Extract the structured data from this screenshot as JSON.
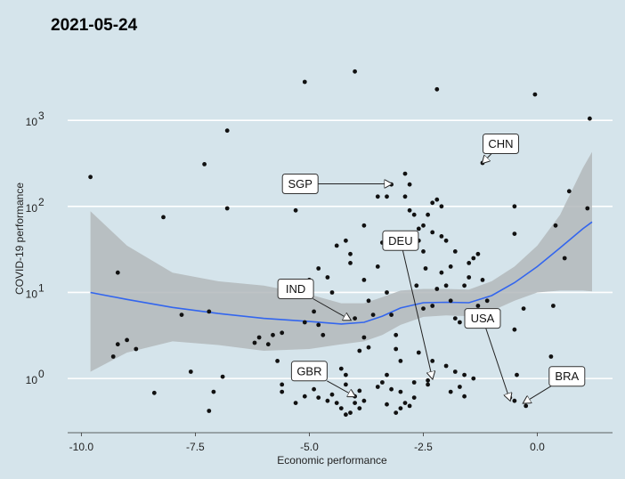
{
  "chart_data": {
    "type": "scatter",
    "title": "2021-05-24",
    "xlabel": "Economic performance",
    "ylabel": "COVID-19 performance",
    "xlim": [
      -10.3,
      1.65
    ],
    "ylim_log10": [
      -0.63,
      3.83
    ],
    "y_scale": "log10",
    "x_ticks": [
      -10.0,
      -7.5,
      -5.0,
      -2.5,
      0.0
    ],
    "x_tick_labels": [
      "-10.0",
      "-7.5",
      "-5.0",
      "-2.5",
      "0.0"
    ],
    "y_ticks": [
      1,
      10,
      100,
      1000
    ],
    "y_tick_labels": [
      {
        "base": "10",
        "exp": "0"
      },
      {
        "base": "10",
        "exp": "1"
      },
      {
        "base": "10",
        "exp": "2"
      },
      {
        "base": "10",
        "exp": "3"
      }
    ],
    "grid": "horizontal",
    "colors": {
      "background": "#d5e4eb",
      "grid": "#ffffff",
      "points": "#111111",
      "smooth_line": "#3366ee",
      "confidence_band": "#b3b8bb"
    },
    "points": [
      [
        -9.8,
        220
      ],
      [
        -9.2,
        17
      ],
      [
        -8.2,
        75
      ],
      [
        -7.3,
        310
      ],
      [
        -6.8,
        760
      ],
      [
        -6.8,
        95
      ],
      [
        -6.9,
        1.05
      ],
      [
        -9.3,
        1.8
      ],
      [
        -9.2,
        2.5
      ],
      [
        -9.0,
        2.8
      ],
      [
        -8.8,
        2.2
      ],
      [
        -8.4,
        0.68
      ],
      [
        -7.6,
        1.2
      ],
      [
        -7.2,
        6.0
      ],
      [
        -7.1,
        0.7
      ],
      [
        -7.2,
        0.42
      ],
      [
        -7.8,
        5.5
      ],
      [
        -6.2,
        2.6
      ],
      [
        -6.1,
        3.0
      ],
      [
        -5.9,
        2.5
      ],
      [
        -5.8,
        3.2
      ],
      [
        -5.7,
        1.6
      ],
      [
        -5.6,
        3.4
      ],
      [
        -5.6,
        0.85
      ],
      [
        -5.6,
        0.7
      ],
      [
        -5.3,
        0.52
      ],
      [
        -5.1,
        0.62
      ],
      [
        -5.0,
        14
      ],
      [
        -4.9,
        6
      ],
      [
        -4.8,
        4.2
      ],
      [
        -4.7,
        3.2
      ],
      [
        -5.3,
        90
      ],
      [
        -5.1,
        2800
      ],
      [
        -4.0,
        3700
      ],
      [
        -4.0,
        5.0
      ],
      [
        -4.4,
        35
      ],
      [
        -4.2,
        40
      ],
      [
        -4.1,
        28
      ],
      [
        -4.1,
        22
      ],
      [
        -4.5,
        10
      ],
      [
        -4.6,
        15
      ],
      [
        -4.8,
        19
      ],
      [
        -5.0,
        11
      ],
      [
        -5.1,
        4.5
      ],
      [
        -4.9,
        0.75
      ],
      [
        -4.8,
        0.6
      ],
      [
        -4.6,
        0.55
      ],
      [
        -4.5,
        0.65
      ],
      [
        -4.4,
        0.52
      ],
      [
        -4.3,
        0.45
      ],
      [
        -4.2,
        0.38
      ],
      [
        -4.1,
        0.4
      ],
      [
        -4.0,
        0.52
      ],
      [
        -3.9,
        0.45
      ],
      [
        -4.2,
        1.1
      ],
      [
        -4.3,
        1.3
      ],
      [
        -4.2,
        0.85
      ],
      [
        -4.0,
        0.62
      ],
      [
        -3.9,
        0.72
      ],
      [
        -3.8,
        0.55
      ],
      [
        -3.8,
        3.0
      ],
      [
        -3.9,
        2.1
      ],
      [
        -3.7,
        2.3
      ],
      [
        -3.6,
        5.5
      ],
      [
        -3.7,
        8
      ],
      [
        -3.8,
        14
      ],
      [
        -3.8,
        60
      ],
      [
        -3.4,
        38
      ],
      [
        -3.5,
        130
      ],
      [
        -3.3,
        130
      ],
      [
        -3.2,
        180
      ],
      [
        -3.3,
        10
      ],
      [
        -3.2,
        5.5
      ],
      [
        -3.1,
        3.2
      ],
      [
        -3.1,
        2.2
      ],
      [
        -3.0,
        1.6
      ],
      [
        -3.3,
        1.1
      ],
      [
        -3.4,
        0.9
      ],
      [
        -3.5,
        0.8
      ],
      [
        -3.2,
        0.75
      ],
      [
        -3.0,
        0.7
      ],
      [
        -2.9,
        0.52
      ],
      [
        -2.8,
        0.48
      ],
      [
        -3.0,
        0.45
      ],
      [
        -3.1,
        0.4
      ],
      [
        -3.3,
        0.5
      ],
      [
        -2.7,
        0.9
      ],
      [
        -2.7,
        0.6
      ],
      [
        -2.9,
        130
      ],
      [
        -2.8,
        180
      ],
      [
        -2.8,
        90
      ],
      [
        -2.7,
        80
      ],
      [
        -2.6,
        55
      ],
      [
        -2.6,
        40
      ],
      [
        -2.5,
        30
      ],
      [
        -2.5,
        60
      ],
      [
        -2.4,
        80
      ],
      [
        -2.3,
        110
      ],
      [
        -2.2,
        120
      ],
      [
        -2.1,
        100
      ],
      [
        -2.9,
        240
      ],
      [
        -2.2,
        2300
      ],
      [
        -2.3,
        50
      ],
      [
        -2.1,
        45
      ],
      [
        -2.0,
        40
      ],
      [
        -1.8,
        30
      ],
      [
        -2.1,
        17
      ],
      [
        -1.9,
        20
      ],
      [
        -2.0,
        12
      ],
      [
        -2.2,
        11
      ],
      [
        -2.5,
        6.5
      ],
      [
        -2.3,
        7
      ],
      [
        -1.9,
        8
      ],
      [
        -1.8,
        5
      ],
      [
        -1.7,
        4.5
      ],
      [
        -1.6,
        12
      ],
      [
        -1.5,
        22
      ],
      [
        -1.4,
        25
      ],
      [
        -1.3,
        28
      ],
      [
        -1.5,
        15
      ],
      [
        -1.2,
        14
      ],
      [
        -1.3,
        7
      ],
      [
        -1.1,
        8
      ],
      [
        -2.6,
        2.0
      ],
      [
        -2.3,
        1.6
      ],
      [
        -2.0,
        1.4
      ],
      [
        -1.8,
        1.2
      ],
      [
        -1.6,
        1.1
      ],
      [
        -1.4,
        1.0
      ],
      [
        -1.7,
        0.8
      ],
      [
        -1.9,
        0.7
      ],
      [
        -1.6,
        0.62
      ],
      [
        -2.4,
        0.95
      ],
      [
        -2.4,
        0.85
      ],
      [
        -1.2,
        320
      ],
      [
        -0.45,
        1.1
      ],
      [
        -0.5,
        100
      ],
      [
        -0.5,
        48
      ],
      [
        -0.5,
        3.7
      ],
      [
        -0.3,
        6.5
      ],
      [
        -0.6,
        0.6
      ],
      [
        -0.5,
        0.55
      ],
      [
        -0.25,
        0.48
      ],
      [
        -0.05,
        2000
      ],
      [
        0.4,
        60
      ],
      [
        0.7,
        150
      ],
      [
        0.6,
        25
      ],
      [
        0.35,
        7
      ],
      [
        0.3,
        1.8
      ],
      [
        0.95,
        1.1
      ],
      [
        1.1,
        95
      ],
      [
        1.15,
        1050
      ],
      [
        -2.65,
        12
      ],
      [
        -2.45,
        19
      ],
      [
        -3.5,
        20
      ]
    ],
    "smooth": [
      [
        -9.8,
        10
      ],
      [
        -9.0,
        8.3
      ],
      [
        -8.0,
        6.7
      ],
      [
        -7.0,
        5.7
      ],
      [
        -6.0,
        5.0
      ],
      [
        -5.0,
        4.6
      ],
      [
        -4.3,
        4.3
      ],
      [
        -3.8,
        4.5
      ],
      [
        -3.4,
        5.3
      ],
      [
        -3.0,
        6.6
      ],
      [
        -2.5,
        7.6
      ],
      [
        -2.0,
        7.7
      ],
      [
        -1.5,
        7.6
      ],
      [
        -1.0,
        9.2
      ],
      [
        -0.5,
        13
      ],
      [
        0.0,
        20
      ],
      [
        0.5,
        33
      ],
      [
        1.0,
        55
      ],
      [
        1.2,
        66
      ]
    ],
    "band_upper": [
      [
        -9.8,
        88
      ],
      [
        -9.0,
        35
      ],
      [
        -8.0,
        17
      ],
      [
        -7.0,
        13.5
      ],
      [
        -6.0,
        12
      ],
      [
        -5.0,
        9.5
      ],
      [
        -4.3,
        7.5
      ],
      [
        -3.8,
        7.5
      ],
      [
        -3.4,
        8.8
      ],
      [
        -3.0,
        10.5
      ],
      [
        -2.5,
        11
      ],
      [
        -2.0,
        11
      ],
      [
        -1.5,
        10.8
      ],
      [
        -1.0,
        13.5
      ],
      [
        -0.5,
        20
      ],
      [
        0.0,
        35
      ],
      [
        0.5,
        80
      ],
      [
        1.0,
        280
      ],
      [
        1.2,
        430
      ]
    ],
    "band_lower": [
      [
        -9.8,
        1.2
      ],
      [
        -9.0,
        2.0
      ],
      [
        -8.0,
        2.7
      ],
      [
        -7.0,
        2.45
      ],
      [
        -6.0,
        2.1
      ],
      [
        -5.0,
        2.2
      ],
      [
        -4.3,
        2.5
      ],
      [
        -3.8,
        2.7
      ],
      [
        -3.4,
        3.2
      ],
      [
        -3.0,
        4.2
      ],
      [
        -2.5,
        5.2
      ],
      [
        -2.0,
        5.4
      ],
      [
        -1.5,
        5.3
      ],
      [
        -1.0,
        6.1
      ],
      [
        -0.5,
        8.0
      ],
      [
        0.0,
        10.0
      ],
      [
        0.5,
        10.5
      ],
      [
        1.0,
        10.5
      ],
      [
        1.2,
        10.3
      ]
    ],
    "annotations": [
      {
        "label": "CHN",
        "label_x": -0.8,
        "label_y": 535,
        "target_x": -1.2,
        "target_y": 320
      },
      {
        "label": "SGP",
        "label_x": -5.2,
        "label_y": 183,
        "target_x": -3.2,
        "target_y": 183
      },
      {
        "label": "IND",
        "label_x": -5.3,
        "label_y": 11.0,
        "target_x": -4.1,
        "target_y": 4.8
      },
      {
        "label": "DEU",
        "label_x": -3.0,
        "label_y": 40,
        "target_x": -2.3,
        "target_y": 1.0
      },
      {
        "label": "USA",
        "label_x": -1.2,
        "label_y": 5.0,
        "target_x": -0.6,
        "target_y": 0.56
      },
      {
        "label": "GBR",
        "label_x": -5.0,
        "label_y": 1.22,
        "target_x": -4.0,
        "target_y": 0.62
      },
      {
        "label": "BRA",
        "label_x": 0.65,
        "label_y": 1.06,
        "target_x": -0.3,
        "target_y": 0.52
      }
    ]
  }
}
